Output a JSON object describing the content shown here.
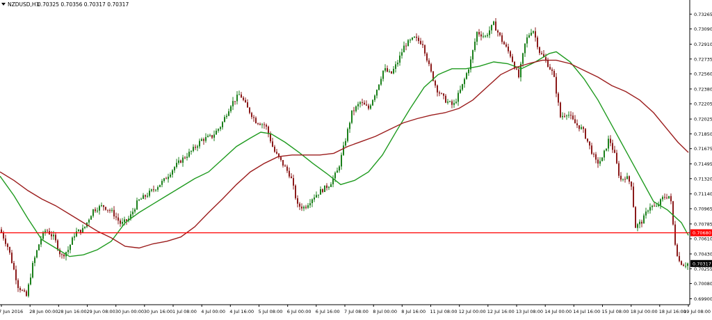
{
  "header": {
    "symbol_label": "NZDUSD,H1",
    "ohlc_text": "0.70325 0.70356 0.70317 0.70317"
  },
  "colors": {
    "background": "#ffffff",
    "bull_candle": "#1a7f1a",
    "bear_candle": "#8b1a1a",
    "ma_fast": "#1e9a1e",
    "ma_slow": "#9b1c1c",
    "hline": "#ff0000",
    "axis_text": "#000000",
    "current_price_bg": "#000000",
    "hline_badge_bg": "#ff0000"
  },
  "chart_data": {
    "type": "candlestick",
    "symbol": "NZDUSD",
    "timeframe": "H1",
    "ylim": [
      0.6983,
      0.7335
    ],
    "y_ticks": [
      "0.73265",
      "0.73090",
      "0.72910",
      "0.72735",
      "0.72560",
      "0.72380",
      "0.72205",
      "0.72025",
      "0.71850",
      "0.71675",
      "0.71495",
      "0.71320",
      "0.71140",
      "0.70965",
      "0.70785",
      "0.70610",
      "0.70430",
      "0.70255",
      "0.70080",
      "0.69900"
    ],
    "x_ticks": [
      "27 Jun 2016",
      "28 Jun 00:00",
      "28 Jun 16:00",
      "29 Jun 08:00",
      "30 Jun 00:00",
      "30 Jun 16:00",
      "1 Jul 08:00",
      "4 Jul 00:00",
      "4 Jul 16:00",
      "5 Jul 08:00",
      "6 Jul 00:00",
      "6 Jul 16:00",
      "7 Jul 08:00",
      "8 Jul 00:00",
      "8 Jul 16:00",
      "11 Jul 08:00",
      "12 Jul 00:00",
      "12 Jul 16:00",
      "13 Jul 08:00",
      "14 Jul 00:00",
      "14 Jul 16:00",
      "15 Jul 08:00",
      "18 Jul 00:00",
      "18 Jul 16:00",
      "19 Jul 08:00"
    ],
    "close_path": [
      [
        0,
        0.7072
      ],
      [
        12,
        0.705
      ],
      [
        26,
        0.7005
      ],
      [
        38,
        0.6993
      ],
      [
        47,
        0.703
      ],
      [
        58,
        0.706
      ],
      [
        66,
        0.7072
      ],
      [
        78,
        0.7062
      ],
      [
        88,
        0.704
      ],
      [
        98,
        0.7048
      ],
      [
        108,
        0.7068
      ],
      [
        120,
        0.7072
      ],
      [
        134,
        0.7095
      ],
      [
        148,
        0.71
      ],
      [
        162,
        0.7092
      ],
      [
        174,
        0.7078
      ],
      [
        186,
        0.7085
      ],
      [
        198,
        0.7105
      ],
      [
        210,
        0.7112
      ],
      [
        222,
        0.712
      ],
      [
        236,
        0.713
      ],
      [
        250,
        0.7145
      ],
      [
        262,
        0.7155
      ],
      [
        276,
        0.7165
      ],
      [
        290,
        0.7178
      ],
      [
        305,
        0.7182
      ],
      [
        318,
        0.7195
      ],
      [
        332,
        0.722
      ],
      [
        345,
        0.7232
      ],
      [
        356,
        0.7215
      ],
      [
        368,
        0.72
      ],
      [
        382,
        0.7195
      ],
      [
        394,
        0.7165
      ],
      [
        406,
        0.715
      ],
      [
        418,
        0.7135
      ],
      [
        428,
        0.71
      ],
      [
        438,
        0.7098
      ],
      [
        450,
        0.711
      ],
      [
        462,
        0.7118
      ],
      [
        474,
        0.7125
      ],
      [
        486,
        0.7142
      ],
      [
        496,
        0.7175
      ],
      [
        506,
        0.721
      ],
      [
        518,
        0.7222
      ],
      [
        530,
        0.7215
      ],
      [
        542,
        0.7238
      ],
      [
        552,
        0.7262
      ],
      [
        562,
        0.7255
      ],
      [
        572,
        0.727
      ],
      [
        582,
        0.729
      ],
      [
        596,
        0.7298
      ],
      [
        608,
        0.7292
      ],
      [
        618,
        0.7262
      ],
      [
        628,
        0.7238
      ],
      [
        640,
        0.7225
      ],
      [
        652,
        0.7218
      ],
      [
        664,
        0.724
      ],
      [
        676,
        0.7268
      ],
      [
        686,
        0.7305
      ],
      [
        698,
        0.73
      ],
      [
        710,
        0.7315
      ],
      [
        722,
        0.7295
      ],
      [
        734,
        0.7278
      ],
      [
        746,
        0.7252
      ],
      [
        756,
        0.7295
      ],
      [
        766,
        0.731
      ],
      [
        776,
        0.7282
      ],
      [
        786,
        0.727
      ],
      [
        796,
        0.7255
      ],
      [
        806,
        0.7205
      ],
      [
        816,
        0.721
      ],
      [
        826,
        0.7198
      ],
      [
        838,
        0.719
      ],
      [
        848,
        0.717
      ],
      [
        858,
        0.715
      ],
      [
        866,
        0.7155
      ],
      [
        876,
        0.718
      ],
      [
        884,
        0.716
      ],
      [
        892,
        0.713
      ],
      [
        900,
        0.7135
      ],
      [
        908,
        0.7125
      ],
      [
        914,
        0.7075
      ],
      [
        924,
        0.7082
      ],
      [
        934,
        0.71
      ],
      [
        944,
        0.7098
      ],
      [
        954,
        0.711
      ],
      [
        964,
        0.7112
      ],
      [
        970,
        0.706
      ],
      [
        976,
        0.7035
      ],
      [
        984,
        0.703
      ],
      [
        990,
        0.7032
      ]
    ],
    "series": [
      {
        "values": [
          [
            0,
            0.7135
          ],
          [
            20,
            0.7112
          ],
          [
            40,
            0.7085
          ],
          [
            60,
            0.706
          ],
          [
            80,
            0.705
          ],
          [
            100,
            0.704
          ],
          [
            120,
            0.7042
          ],
          [
            140,
            0.7048
          ],
          [
            160,
            0.7058
          ],
          [
            180,
            0.708
          ],
          [
            200,
            0.7092
          ],
          [
            220,
            0.7102
          ],
          [
            240,
            0.7112
          ],
          [
            260,
            0.7122
          ],
          [
            280,
            0.7132
          ],
          [
            300,
            0.714
          ],
          [
            320,
            0.7155
          ],
          [
            340,
            0.717
          ],
          [
            360,
            0.718
          ],
          [
            375,
            0.7187
          ],
          [
            390,
            0.7185
          ],
          [
            410,
            0.7175
          ],
          [
            430,
            0.7163
          ],
          [
            450,
            0.715
          ],
          [
            470,
            0.7138
          ],
          [
            490,
            0.7125
          ],
          [
            510,
            0.713
          ],
          [
            530,
            0.714
          ],
          [
            550,
            0.716
          ],
          [
            570,
            0.7188
          ],
          [
            590,
            0.7215
          ],
          [
            610,
            0.724
          ],
          [
            630,
            0.7255
          ],
          [
            650,
            0.7262
          ],
          [
            670,
            0.7262
          ],
          [
            690,
            0.7265
          ],
          [
            710,
            0.727
          ],
          [
            730,
            0.7268
          ],
          [
            750,
            0.7262
          ],
          [
            770,
            0.727
          ],
          [
            790,
            0.728
          ],
          [
            800,
            0.7282
          ],
          [
            820,
            0.727
          ],
          [
            840,
            0.725
          ],
          [
            860,
            0.7225
          ],
          [
            880,
            0.7195
          ],
          [
            900,
            0.7165
          ],
          [
            920,
            0.7135
          ],
          [
            940,
            0.7105
          ],
          [
            960,
            0.7095
          ],
          [
            980,
            0.708
          ],
          [
            990,
            0.7065
          ]
        ]
      },
      {
        "values": [
          [
            0,
            0.714
          ],
          [
            20,
            0.713
          ],
          [
            40,
            0.7118
          ],
          [
            60,
            0.7108
          ],
          [
            80,
            0.71
          ],
          [
            100,
            0.709
          ],
          [
            120,
            0.708
          ],
          [
            140,
            0.707
          ],
          [
            160,
            0.7062
          ],
          [
            180,
            0.7052
          ],
          [
            200,
            0.705
          ],
          [
            220,
            0.7055
          ],
          [
            240,
            0.7058
          ],
          [
            260,
            0.7063
          ],
          [
            280,
            0.7075
          ],
          [
            300,
            0.7092
          ],
          [
            320,
            0.7108
          ],
          [
            340,
            0.7125
          ],
          [
            360,
            0.714
          ],
          [
            380,
            0.715
          ],
          [
            400,
            0.7158
          ],
          [
            420,
            0.716
          ],
          [
            440,
            0.716
          ],
          [
            460,
            0.716
          ],
          [
            480,
            0.7162
          ],
          [
            500,
            0.717
          ],
          [
            520,
            0.7176
          ],
          [
            540,
            0.7182
          ],
          [
            560,
            0.719
          ],
          [
            580,
            0.7198
          ],
          [
            600,
            0.7203
          ],
          [
            620,
            0.7207
          ],
          [
            640,
            0.721
          ],
          [
            660,
            0.7215
          ],
          [
            680,
            0.7225
          ],
          [
            700,
            0.724
          ],
          [
            720,
            0.7255
          ],
          [
            740,
            0.7263
          ],
          [
            760,
            0.7268
          ],
          [
            780,
            0.7272
          ],
          [
            800,
            0.7272
          ],
          [
            820,
            0.7268
          ],
          [
            840,
            0.726
          ],
          [
            860,
            0.7252
          ],
          [
            880,
            0.7242
          ],
          [
            900,
            0.7235
          ],
          [
            920,
            0.7225
          ],
          [
            940,
            0.721
          ],
          [
            960,
            0.719
          ],
          [
            975,
            0.7175
          ],
          [
            990,
            0.7163
          ]
        ]
      }
    ],
    "horizontal_line": {
      "value": 0.7068,
      "label": "0.70680"
    },
    "current_price": {
      "value": 0.70317,
      "label": "0.70317"
    }
  }
}
